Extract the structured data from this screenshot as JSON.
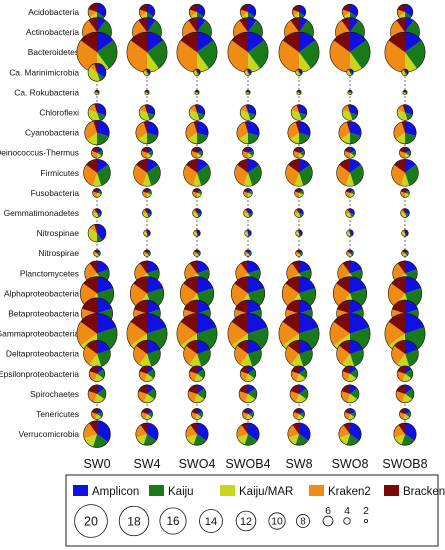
{
  "chart_data": {
    "type": "bubble-pie",
    "rows": [
      "Acidobacteria",
      "Actinobacteria",
      "Bacteroidetes",
      "Ca. Marinimicrobia",
      "Ca. Rokubacteria",
      "Chloroflexi",
      "Cyanobacteria",
      "Deinococcus-Thermus",
      "Firmicutes",
      "Fusobacteria",
      "Gemmatimonadetes",
      "Nitrospinae",
      "Nitrospirae",
      "Planctomycetes",
      "Alphaproteobacteria",
      "Betaproteobacteria",
      "Gammaproteobacteria",
      "Deltaproteobacteria",
      "Epsilonproteobacteria",
      "Spirochaetes",
      "Tenericutes",
      "Verrucomicrobia"
    ],
    "columns": [
      "SW0",
      "SW4",
      "SWO4",
      "SWOB4",
      "SW8",
      "SWO8",
      "SWOB8"
    ],
    "methods": [
      {
        "name": "Amplicon",
        "color": "#1010e0"
      },
      {
        "name": "Kaiju",
        "color": "#1a7a1a"
      },
      {
        "name": "Kaiju/MAR",
        "color": "#c8d61c"
      },
      {
        "name": "Kraken2",
        "color": "#f08c14"
      },
      {
        "name": "Bracken",
        "color": "#7a0a0a"
      }
    ],
    "size_legend": [
      20,
      18,
      16,
      14,
      12,
      10,
      8,
      6,
      4,
      2
    ],
    "row_sizes": [
      [
        8,
        7,
        7,
        7,
        6,
        7,
        7
      ],
      [
        13,
        13,
        13,
        13,
        13,
        13,
        13
      ],
      [
        18,
        18,
        18,
        18,
        18,
        18,
        18
      ],
      [
        8,
        3,
        3,
        3,
        3,
        3,
        3
      ],
      [
        2,
        2,
        2,
        2,
        2,
        2,
        2
      ],
      [
        8,
        7,
        7,
        7,
        7,
        7,
        7
      ],
      [
        11,
        10,
        10,
        10,
        10,
        10,
        10
      ],
      [
        5,
        5,
        5,
        5,
        5,
        5,
        5
      ],
      [
        12,
        12,
        12,
        12,
        12,
        12,
        12
      ],
      [
        4,
        4,
        4,
        4,
        4,
        4,
        4
      ],
      [
        4,
        4,
        4,
        4,
        4,
        4,
        4
      ],
      [
        8,
        3,
        3,
        3,
        3,
        3,
        3
      ],
      [
        3,
        3,
        3,
        3,
        3,
        3,
        3
      ],
      [
        11,
        11,
        11,
        11,
        11,
        11,
        11
      ],
      [
        15,
        15,
        15,
        15,
        15,
        15,
        15
      ],
      [
        14,
        12,
        12,
        12,
        12,
        12,
        12
      ],
      [
        18,
        18,
        18,
        18,
        18,
        18,
        18
      ],
      [
        12,
        12,
        12,
        12,
        12,
        12,
        12
      ],
      [
        7,
        7,
        7,
        7,
        7,
        7,
        7
      ],
      [
        8,
        8,
        8,
        8,
        8,
        8,
        8
      ],
      [
        5,
        5,
        5,
        5,
        5,
        5,
        5
      ],
      [
        12,
        10,
        10,
        10,
        10,
        10,
        10
      ]
    ],
    "row_shares": [
      [
        0.35,
        0.15,
        0.15,
        0.15,
        0.2
      ],
      [
        0.1,
        0.25,
        0.15,
        0.4,
        0.1
      ],
      [
        0.15,
        0.25,
        0.1,
        0.35,
        0.15
      ],
      [
        0.35,
        0.1,
        0.4,
        0.1,
        0.05
      ],
      [
        0.2,
        0.2,
        0.2,
        0.2,
        0.2
      ],
      [
        0.3,
        0.15,
        0.35,
        0.15,
        0.05
      ],
      [
        0.3,
        0.2,
        0.15,
        0.3,
        0.05
      ],
      [
        0.2,
        0.15,
        0.15,
        0.3,
        0.2
      ],
      [
        0.15,
        0.3,
        0.1,
        0.3,
        0.15
      ],
      [
        0.15,
        0.15,
        0.2,
        0.3,
        0.2
      ],
      [
        0.3,
        0.15,
        0.3,
        0.15,
        0.1
      ],
      [
        0.4,
        0.1,
        0.35,
        0.1,
        0.05
      ],
      [
        0.2,
        0.2,
        0.25,
        0.2,
        0.15
      ],
      [
        0.2,
        0.2,
        0.25,
        0.25,
        0.1
      ],
      [
        0.2,
        0.25,
        0.15,
        0.25,
        0.15
      ],
      [
        0.2,
        0.2,
        0.15,
        0.25,
        0.2
      ],
      [
        0.2,
        0.3,
        0.15,
        0.2,
        0.15
      ],
      [
        0.2,
        0.25,
        0.15,
        0.25,
        0.15
      ],
      [
        0.15,
        0.2,
        0.2,
        0.25,
        0.2
      ],
      [
        0.15,
        0.2,
        0.2,
        0.25,
        0.2
      ],
      [
        0.2,
        0.15,
        0.2,
        0.25,
        0.2
      ],
      [
        0.35,
        0.2,
        0.15,
        0.2,
        0.1
      ]
    ],
    "legend_position": "bottom"
  }
}
